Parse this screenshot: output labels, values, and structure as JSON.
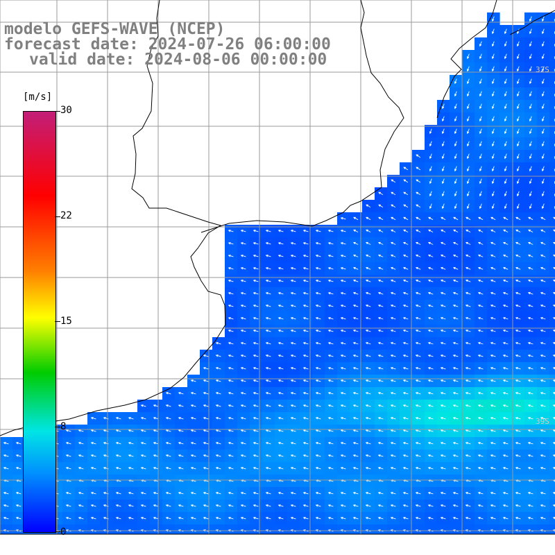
{
  "title": {
    "model": "modelo GEFS-WAVE (NCEP)",
    "forecast": "forecast date: 2024-07-26 06:00:00",
    "valid": "valid date: 2024-08-06 00:00:00"
  },
  "colorbar": {
    "unit": "[m/s]",
    "ticks": [
      "30",
      "22",
      "15",
      "8",
      "0"
    ],
    "range": [
      0,
      30
    ]
  },
  "grid_labels": [
    "32S",
    "39S"
  ],
  "colors": {
    "land": "#ffffff",
    "grid": "#9a9a9a",
    "coast": "#000000",
    "arrow": "#ffffff",
    "title": "#808080"
  },
  "field": {
    "variable": "wind speed",
    "typical_range_mps": [
      3,
      9
    ],
    "arrow_direction": "mostly from east / northeast"
  }
}
